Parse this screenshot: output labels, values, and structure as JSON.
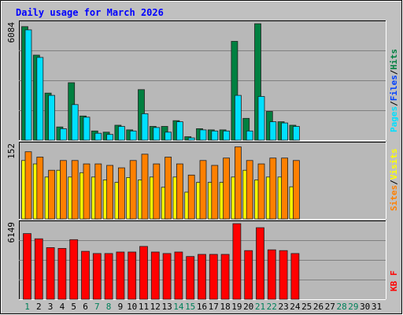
{
  "colors": {
    "frame_bg": "#C0C0C0",
    "plot_bg": "#B8B8B8",
    "title": "#0000FF",
    "grid": "#808080",
    "hits": "#008040",
    "files": "#0040FF",
    "pages": "#00E0FF",
    "visits": "#FFFF00",
    "sites": "#FF8000",
    "kbytes": "#FF0000",
    "day_normal": "#000000",
    "day_weekend": "#00805A",
    "slash": "#000000"
  },
  "chart_data": {
    "type": "bar",
    "title": "Daily usage for March 2026",
    "days": [
      "1",
      "2",
      "3",
      "4",
      "5",
      "6",
      "7",
      "8",
      "9",
      "10",
      "11",
      "12",
      "13",
      "14",
      "15",
      "16",
      "17",
      "18",
      "19",
      "20",
      "21",
      "22",
      "23",
      "24",
      "25",
      "26",
      "27",
      "28",
      "29",
      "30",
      "31"
    ],
    "weekend_days": [
      "1",
      "7",
      "8",
      "14",
      "15",
      "21",
      "22",
      "28",
      "29"
    ],
    "panels": [
      {
        "id": "hits",
        "ymax_label": "6084",
        "ymax": 6084,
        "grid": true,
        "axis_labels": [
          {
            "text": "Pages",
            "color_key": "pages"
          },
          {
            "text": "/",
            "color_key": "slash"
          },
          {
            "text": "Files",
            "color_key": "files"
          },
          {
            "text": "/",
            "color_key": "slash"
          },
          {
            "text": "Hits",
            "color_key": "hits"
          }
        ],
        "series": [
          {
            "key": "hits",
            "values": [
              5928,
              4440,
              2460,
              690,
              3000,
              1260,
              480,
              420,
              780,
              540,
              2640,
              720,
              720,
              1020,
              180,
              600,
              540,
              540,
              5160,
              1140,
              6080,
              1500,
              960,
              780
            ]
          },
          {
            "key": "pages",
            "values": [
              5760,
              4320,
              2340,
              600,
              1860,
              1200,
              360,
              300,
              720,
              480,
              1380,
              660,
              420,
              960,
              120,
              540,
              480,
              480,
              2340,
              480,
              2280,
              960,
              900,
              720
            ]
          }
        ]
      },
      {
        "id": "visits",
        "ymax_label": "152",
        "ymax": 152,
        "grid": false,
        "axis_labels": [
          {
            "text": "Sites",
            "color_key": "sites"
          },
          {
            "text": "/",
            "color_key": "slash"
          },
          {
            "text": "Visits",
            "color_key": "visits"
          }
        ],
        "series": [
          {
            "key": "visits",
            "values": [
              120,
              113,
              86,
              100,
              86,
              95,
              86,
              80,
              75,
              85,
              80,
              86,
              65,
              86,
              55,
              75,
              75,
              75,
              86,
              100,
              80,
              86,
              86,
              66
            ]
          },
          {
            "key": "sites",
            "values": [
              138,
              127,
              100,
              120,
              120,
              113,
              113,
              110,
              105,
              120,
              133,
              113,
              127,
              113,
              90,
              120,
              110,
              125,
              148,
              120,
              113,
              125,
              125,
              120
            ]
          }
        ]
      },
      {
        "id": "kbytes",
        "ymax_label": "6149",
        "ymax": 6149,
        "grid": true,
        "axis_labels": [
          {
            "text": "KB F",
            "color_key": "kbytes"
          }
        ],
        "series": [
          {
            "key": "kbytes",
            "values": [
              5340,
              4920,
              4200,
              4140,
              4850,
              3900,
              3720,
              3720,
              3840,
              3840,
              4300,
              3840,
              3720,
              3840,
              3480,
              3650,
              3650,
              3650,
              6149,
              3960,
              5820,
              4020,
              3960,
              3720
            ]
          }
        ]
      }
    ]
  }
}
